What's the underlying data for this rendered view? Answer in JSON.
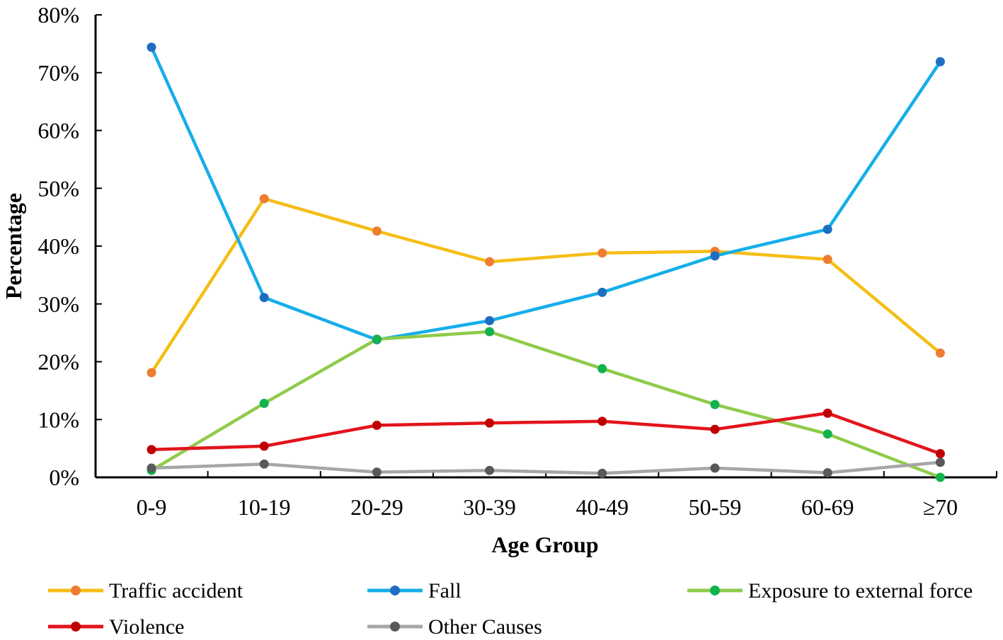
{
  "chart_data": {
    "type": "line",
    "title": "",
    "xlabel": "Age Group",
    "ylabel": "Percentage",
    "categories": [
      "0-9",
      "10-19",
      "20-29",
      "30-39",
      "40-49",
      "50-59",
      "60-69",
      "≥70"
    ],
    "ylim": [
      0,
      80
    ],
    "y_ticks": [
      "0%",
      "10%",
      "20%",
      "30%",
      "40%",
      "50%",
      "60%",
      "70%",
      "80%"
    ],
    "grid": false,
    "legend_position": "bottom",
    "series": [
      {
        "name": "Traffic accident",
        "line_color": "#F5BE16",
        "marker_color": "#ED7D31",
        "values": [
          18.1,
          48.2,
          42.6,
          37.3,
          38.8,
          39.1,
          37.7,
          21.5
        ]
      },
      {
        "name": "Fall",
        "line_color": "#15AEE8",
        "marker_color": "#1D6EC0",
        "values": [
          74.4,
          31.1,
          23.8,
          27.1,
          32.0,
          38.3,
          42.9,
          71.9
        ]
      },
      {
        "name": "Exposure to external force",
        "line_color": "#8FCB4A",
        "marker_color": "#12B24E",
        "values": [
          1.2,
          12.8,
          23.9,
          25.2,
          18.8,
          12.6,
          7.5,
          0.0
        ]
      },
      {
        "name": "Violence",
        "line_color": "#E3131B",
        "marker_color": "#C00000",
        "values": [
          4.8,
          5.4,
          9.0,
          9.4,
          9.7,
          8.3,
          11.1,
          4.1
        ]
      },
      {
        "name": "Other Causes",
        "line_color": "#A6A6A6",
        "marker_color": "#595959",
        "values": [
          1.6,
          2.3,
          0.9,
          1.2,
          0.7,
          1.6,
          0.8,
          2.6
        ]
      }
    ]
  }
}
